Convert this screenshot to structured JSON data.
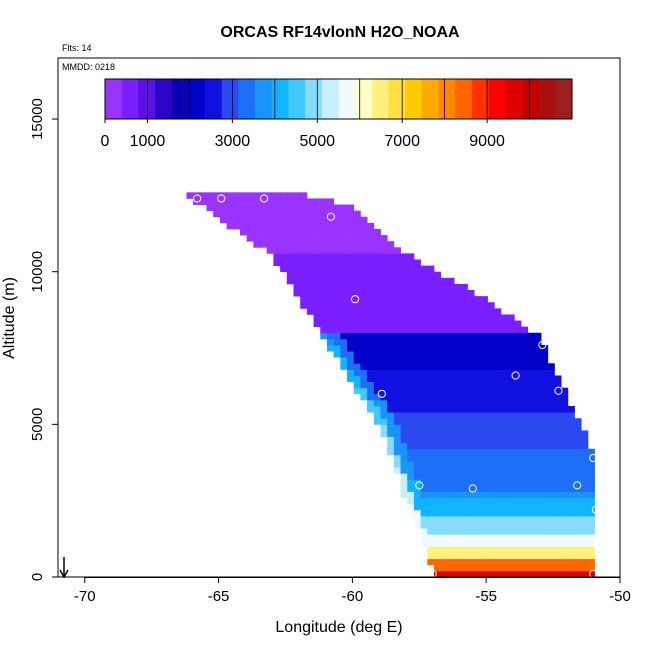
{
  "chart_data": {
    "type": "heatmap",
    "title": "ORCAS RF14vlonN H2O_NOAA",
    "xlabel": "Longitude (deg E)",
    "ylabel": "Altitude (m)",
    "xlim": [
      -71.0,
      -50.0
    ],
    "ylim": [
      0,
      17000
    ],
    "x_ticks": [
      -70,
      -65,
      -60,
      -55,
      -50
    ],
    "x_tick_labels": [
      "-70",
      "-65",
      "-60",
      "-55",
      "-50"
    ],
    "y_ticks": [
      0,
      5000,
      10000,
      15000
    ],
    "y_tick_labels": [
      "0",
      "5000",
      "10000",
      "15000"
    ],
    "annotations": {
      "flights": "Flts: 14",
      "date": "MMDD: 0218"
    },
    "colorbar": {
      "range": [
        0,
        11000
      ],
      "ticks": [
        0,
        1000,
        3000,
        5000,
        7000,
        9000
      ],
      "tick_labels": [
        "0",
        "1000",
        "3000",
        "5000",
        "7000",
        "9000"
      ],
      "colors": [
        "#9a33ff",
        "#7a1fff",
        "#5a10e8",
        "#2d05c8",
        "#0b00b0",
        "#0000c8",
        "#1010e0",
        "#2a4af0",
        "#1e6ff7",
        "#1a93fb",
        "#12b3ff",
        "#40c8ff",
        "#88dcff",
        "#c8eeff",
        "#f0faff",
        "#ffffc8",
        "#fff080",
        "#ffe040",
        "#ffc800",
        "#ffaa00",
        "#ff8800",
        "#ff6600",
        "#ff3300",
        "#ff0000",
        "#e00000",
        "#c20000",
        "#a80f0f",
        "#9a2020"
      ]
    },
    "field": {
      "lon_range": [
        -66.2,
        -50.9
      ],
      "alt_top": 12500,
      "lower_edge": [
        [
          -66.2,
          12500
        ],
        [
          -63.0,
          10500
        ],
        [
          -60.5,
          7000
        ],
        [
          -59.0,
          5000
        ],
        [
          -58.0,
          2500
        ],
        [
          -57.0,
          200
        ]
      ],
      "upper_edge": [
        [
          -66.2,
          12500
        ],
        [
          -62.0,
          12500
        ],
        [
          -60.0,
          12000
        ],
        [
          -58.0,
          10500
        ],
        [
          -55.0,
          9000
        ],
        [
          -53.0,
          7800
        ],
        [
          -51.0,
          4000
        ],
        [
          -50.9,
          0
        ]
      ],
      "bottom_alt": 0
    },
    "observations": [
      {
        "lon": -65.8,
        "alt": 12400
      },
      {
        "lon": -64.9,
        "alt": 12400
      },
      {
        "lon": -63.3,
        "alt": 12400
      },
      {
        "lon": -60.8,
        "alt": 11800
      },
      {
        "lon": -59.9,
        "alt": 9100
      },
      {
        "lon": -58.9,
        "alt": 6000
      },
      {
        "lon": -52.9,
        "alt": 7600
      },
      {
        "lon": -53.9,
        "alt": 6600
      },
      {
        "lon": -52.3,
        "alt": 6100
      },
      {
        "lon": -51.0,
        "alt": 3900
      },
      {
        "lon": -51.6,
        "alt": 3000
      },
      {
        "lon": -57.5,
        "alt": 3000
      },
      {
        "lon": -55.5,
        "alt": 2900
      },
      {
        "lon": -50.9,
        "alt": 2200
      },
      {
        "lon": -56.2,
        "alt": 1200
      },
      {
        "lon": -57.0,
        "alt": 100
      },
      {
        "lon": -57.2,
        "alt": 100
      },
      {
        "lon": -57.3,
        "alt": 100
      },
      {
        "lon": -51.0,
        "alt": 100
      }
    ],
    "arrow_marker": {
      "lon": -70.0,
      "direction": "down"
    }
  }
}
